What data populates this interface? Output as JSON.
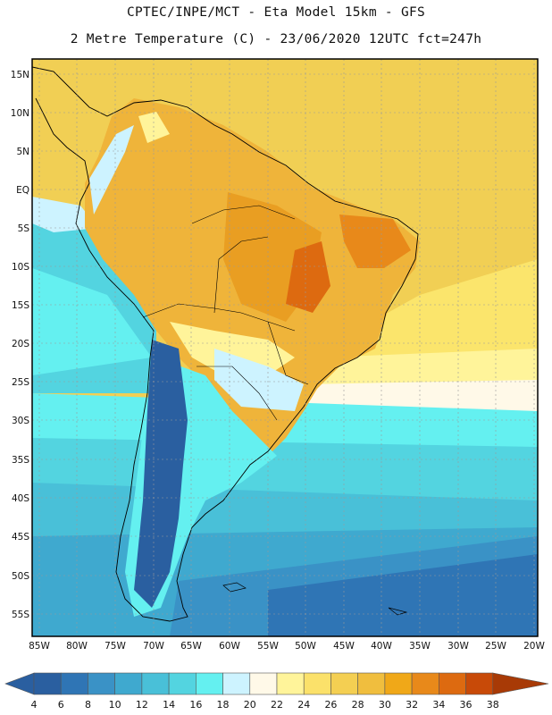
{
  "header": {
    "line1": "CPTEC/INPE/MCT -  Eta Model 15km - GFS",
    "line2": "2 Metre Temperature (C) - 23/06/2020 12UTC fct=247h"
  },
  "axes": {
    "lat_labels": [
      "15N",
      "10N",
      "5N",
      "EQ",
      "5S",
      "10S",
      "15S",
      "20S",
      "25S",
      "30S",
      "35S",
      "40S",
      "45S",
      "50S",
      "55S"
    ],
    "lon_labels": [
      "85W",
      "80W",
      "75W",
      "70W",
      "65W",
      "60W",
      "55W",
      "50W",
      "45W",
      "40W",
      "35W",
      "30W",
      "25W",
      "20W"
    ]
  },
  "legend": {
    "ticks": [
      "4",
      "6",
      "8",
      "10",
      "12",
      "14",
      "16",
      "18",
      "20",
      "22",
      "24",
      "26",
      "28",
      "30",
      "32",
      "34",
      "36",
      "38"
    ],
    "colors": [
      "#2a5fa0",
      "#2f75b5",
      "#3a92c6",
      "#3fa9cf",
      "#49c0d8",
      "#53d4e0",
      "#64f0f0",
      "#cdf3ff",
      "#fff9e8",
      "#fff49a",
      "#fbe16a",
      "#f4cf52",
      "#f0be3e",
      "#f0a818",
      "#e8891a",
      "#dd6a10",
      "#c84a08",
      "#a83a06"
    ]
  },
  "map": {
    "zones": [
      {
        "name": "caribbean-sea",
        "color": "#f3d562"
      },
      {
        "name": "north-atlantic",
        "color": "#f1cf54"
      },
      {
        "name": "amazon-basin",
        "color": "#efb43a"
      },
      {
        "name": "central-brazil-hot",
        "color": "#e99e22"
      },
      {
        "name": "northeast-brazil",
        "color": "#eda52c"
      },
      {
        "name": "south-atlantic-warm",
        "color": "#fbe56c"
      },
      {
        "name": "south-atlantic-mild",
        "color": "#fff49a"
      },
      {
        "name": "subtropical-band",
        "color": "#fff9e8"
      },
      {
        "name": "la-plata-cool",
        "color": "#cdf3ff"
      },
      {
        "name": "argentina-cool",
        "color": "#64f0f0"
      },
      {
        "name": "patagonia",
        "color": "#49c0d8"
      },
      {
        "name": "southern-ocean",
        "color": "#2f75b5"
      },
      {
        "name": "pacific-cool",
        "color": "#53d4e0"
      },
      {
        "name": "andes-cold",
        "color": "#2a5fa0"
      }
    ]
  }
}
